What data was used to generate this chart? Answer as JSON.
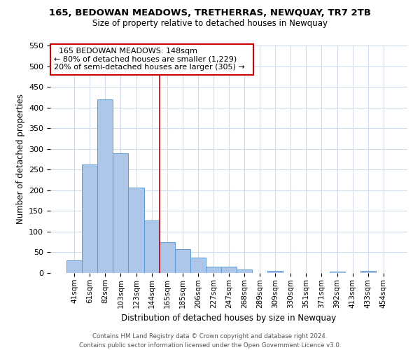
{
  "title": "165, BEDOWAN MEADOWS, TRETHERRAS, NEWQUAY, TR7 2TB",
  "subtitle": "Size of property relative to detached houses in Newquay",
  "xlabel": "Distribution of detached houses by size in Newquay",
  "ylabel": "Number of detached properties",
  "bar_labels": [
    "41sqm",
    "61sqm",
    "82sqm",
    "103sqm",
    "123sqm",
    "144sqm",
    "165sqm",
    "185sqm",
    "206sqm",
    "227sqm",
    "247sqm",
    "268sqm",
    "289sqm",
    "309sqm",
    "330sqm",
    "351sqm",
    "371sqm",
    "392sqm",
    "413sqm",
    "433sqm",
    "454sqm"
  ],
  "bar_values": [
    30,
    262,
    420,
    290,
    207,
    127,
    75,
    58,
    38,
    15,
    15,
    8,
    0,
    5,
    0,
    0,
    0,
    3,
    0,
    5,
    0
  ],
  "bar_color": "#aec6e8",
  "bar_edge_color": "#5b9bd5",
  "highlight_bar_index": 5,
  "highlight_color": "#cc0000",
  "annotation_title": "165 BEDOWAN MEADOWS: 148sqm",
  "annotation_line1": "← 80% of detached houses are smaller (1,229)",
  "annotation_line2": "20% of semi-detached houses are larger (305) →",
  "annotation_box_color": "#ffffff",
  "annotation_box_edge": "#cc0000",
  "ylim": [
    0,
    550
  ],
  "yticks": [
    0,
    50,
    100,
    150,
    200,
    250,
    300,
    350,
    400,
    450,
    500,
    550
  ],
  "footer_line1": "Contains HM Land Registry data © Crown copyright and database right 2024.",
  "footer_line2": "Contains public sector information licensed under the Open Government Licence v3.0.",
  "bg_color": "#ffffff",
  "grid_color": "#d0dcea"
}
